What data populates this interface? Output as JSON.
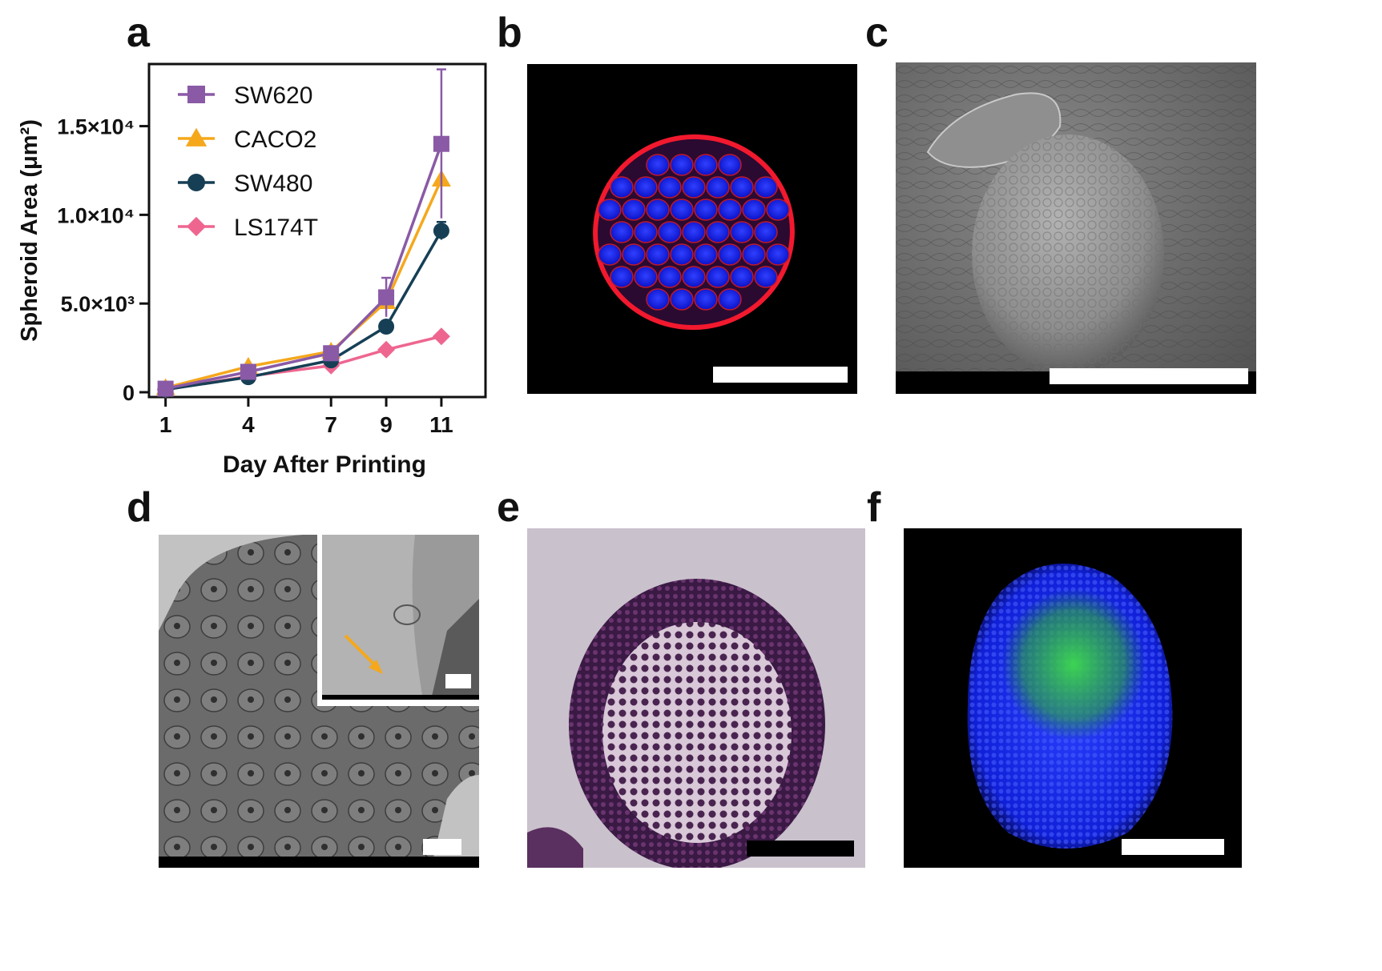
{
  "panel_letters": {
    "a": "a",
    "b": "b",
    "c": "c",
    "d": "d",
    "e": "e",
    "f": "f"
  },
  "chart_data": {
    "type": "line",
    "xlabel": "Day After Printing",
    "ylabel": "Spheroid Area (μm²)",
    "x": [
      1,
      4,
      7,
      9,
      11
    ],
    "x_ticks": [
      "1",
      "4",
      "7",
      "9",
      "11"
    ],
    "y_ticks": [
      "0",
      "5.0×10³",
      "1.0×10⁴",
      "1.5×10⁴"
    ],
    "y_tick_values": [
      0,
      5000,
      10000,
      15000
    ],
    "ylim": [
      0,
      18500
    ],
    "legend_position": "top-left",
    "grid": false,
    "series": [
      {
        "name": "SW620",
        "color": "#8a5aa6",
        "marker": "square",
        "values": [
          200,
          1150,
          2200,
          5350,
          14000
        ],
        "errors": [
          0,
          0,
          0,
          1100,
          4200
        ]
      },
      {
        "name": "CACO2",
        "color": "#f5a81c",
        "marker": "triangle",
        "values": [
          250,
          1450,
          2300,
          5100,
          12000
        ],
        "errors": [
          0,
          0,
          0,
          0,
          0
        ]
      },
      {
        "name": "SW480",
        "color": "#163f55",
        "marker": "circle",
        "values": [
          150,
          850,
          1800,
          3700,
          9100
        ],
        "errors": [
          0,
          0,
          0,
          0,
          500
        ]
      },
      {
        "name": "LS174T",
        "color": "#ee6690",
        "marker": "diamond",
        "values": [
          150,
          900,
          1500,
          2400,
          3150
        ],
        "errors": [
          0,
          0,
          0,
          0,
          0
        ]
      }
    ]
  },
  "images": {
    "b": {
      "description_icon": "fluorescence-spheroid",
      "colors": [
        "#0a0aff",
        "#ff1a2a",
        "#000000"
      ]
    },
    "c": {
      "description_icon": "sem-spheroid",
      "colors": [
        "#7d7d7d",
        "#a8a8a8",
        "#000000"
      ]
    },
    "d": {
      "description_icon": "tem-section",
      "colors": [
        "#6e6e6e",
        "#bdbdbd"
      ],
      "arrow_color": "#f5a81c"
    },
    "e": {
      "description_icon": "he-stained-section",
      "colors": [
        "#4a2450",
        "#c7bfca"
      ]
    },
    "f": {
      "description_icon": "fluorescence-green-blue",
      "colors": [
        "#1a2cff",
        "#2ecc40",
        "#000000"
      ]
    }
  }
}
